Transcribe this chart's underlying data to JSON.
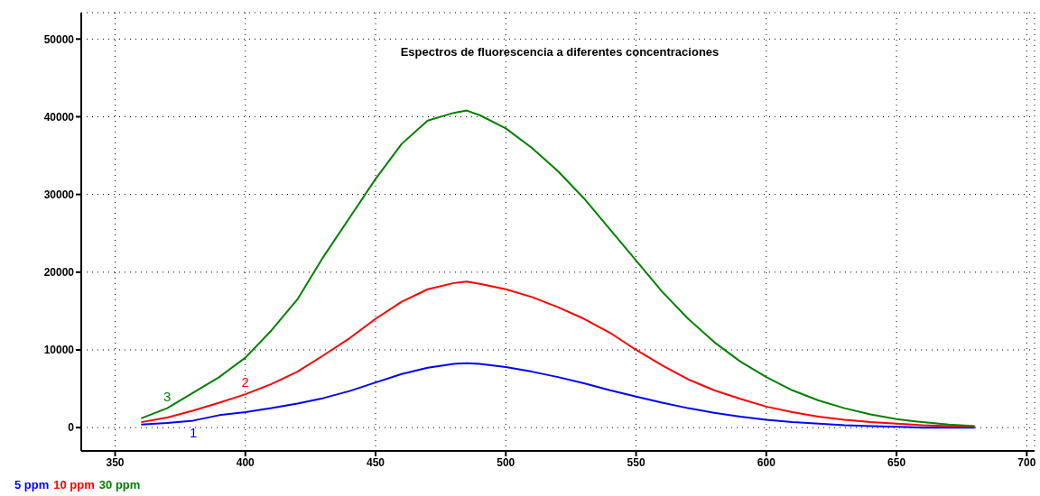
{
  "chart_data": {
    "type": "line",
    "title": "Espectros de fluorescencia a diferentes concentraciones",
    "x": [
      360,
      370,
      380,
      390,
      400,
      410,
      420,
      430,
      440,
      450,
      460,
      470,
      480,
      485,
      490,
      500,
      510,
      520,
      530,
      540,
      550,
      560,
      570,
      580,
      590,
      600,
      610,
      620,
      630,
      640,
      650,
      660,
      670,
      680
    ],
    "series": [
      {
        "name": "5 ppm",
        "color": "#0000ff",
        "values": [
          400,
          600,
          900,
          1600,
          2000,
          2500,
          3100,
          3800,
          4700,
          5800,
          6900,
          7700,
          8200,
          8300,
          8200,
          7800,
          7200,
          6500,
          5700,
          4800,
          4000,
          3200,
          2500,
          1900,
          1400,
          1000,
          700,
          500,
          300,
          200,
          100,
          0,
          0,
          0
        ]
      },
      {
        "name": "10 ppm",
        "color": "#ff0000",
        "values": [
          700,
          1300,
          2200,
          3200,
          4300,
          5600,
          7200,
          9300,
          11500,
          14000,
          16200,
          17800,
          18600,
          18800,
          18500,
          17800,
          16800,
          15500,
          14000,
          12200,
          10000,
          8000,
          6200,
          4800,
          3700,
          2700,
          2000,
          1400,
          1000,
          700,
          500,
          300,
          200,
          100
        ]
      },
      {
        "name": "30 ppm",
        "color": "#008000",
        "values": [
          1200,
          2500,
          4500,
          6500,
          9000,
          12500,
          16500,
          22000,
          27000,
          32000,
          36500,
          39500,
          40500,
          40800,
          40200,
          38500,
          36000,
          33000,
          29500,
          25500,
          21500,
          17500,
          14000,
          11000,
          8500,
          6500,
          4800,
          3500,
          2500,
          1700,
          1100,
          700,
          400,
          200
        ]
      }
    ],
    "annotations": [
      "1",
      "2",
      "3"
    ],
    "xlim": [
      337,
      703
    ],
    "xticks": [
      350,
      400,
      450,
      500,
      550,
      600,
      650,
      700
    ],
    "ylim": [
      -3000,
      53400
    ],
    "yticks": [
      0,
      10000,
      20000,
      30000,
      40000,
      50000
    ],
    "grid": true,
    "legend": "bottom left",
    "marker": "none",
    "line_style": "solid"
  }
}
